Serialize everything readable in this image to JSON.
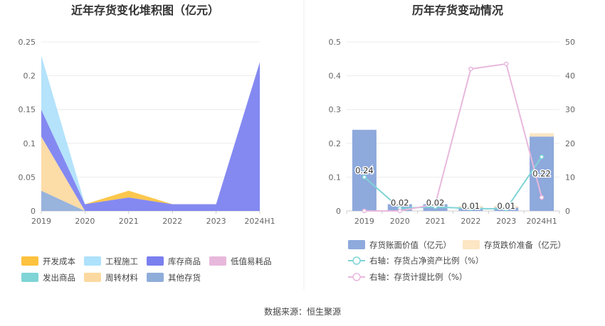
{
  "source": "数据来源：恒生聚源",
  "chart_data": [
    {
      "type": "area",
      "stacked": true,
      "title": "近年存货变化堆积图（亿元）",
      "categories": [
        "2019",
        "2020",
        "2021",
        "2022",
        "2023",
        "2024H1"
      ],
      "ylim": [
        0,
        0.25
      ],
      "yticks": [
        "0",
        "0.05",
        "0.1",
        "0.15",
        "0.2",
        "0.25"
      ],
      "grid": true,
      "legend_position": "bottom",
      "series": [
        {
          "name": "其他存货",
          "color": "#8fadd9",
          "values": [
            0.03,
            0,
            0,
            0,
            0,
            0
          ]
        },
        {
          "name": "周转材料",
          "color": "#fcd9a0",
          "values": [
            0.08,
            0,
            0,
            0,
            0,
            0
          ]
        },
        {
          "name": "发出商品",
          "color": "#7fd4d6",
          "values": [
            0,
            0,
            0,
            0,
            0,
            0
          ]
        },
        {
          "name": "低值易耗品",
          "color": "#e8b8dc",
          "values": [
            0,
            0,
            0,
            0,
            0,
            0
          ]
        },
        {
          "name": "库存商品",
          "color": "#7a7ff0",
          "values": [
            0.04,
            0.01,
            0.02,
            0.01,
            0.01,
            0.22
          ]
        },
        {
          "name": "工程施工",
          "color": "#aee1fb",
          "values": [
            0.08,
            0,
            0,
            0,
            0,
            0
          ]
        },
        {
          "name": "开发成本",
          "color": "#fdc23e",
          "values": [
            0,
            0,
            0.01,
            0,
            0,
            0
          ]
        }
      ],
      "legend_order": [
        "开发成本",
        "工程施工",
        "库存商品",
        "低值易耗品",
        "发出商品",
        "周转材料",
        "其他存货"
      ]
    },
    {
      "type": "bar+line",
      "title": "历年存货变动情况",
      "categories": [
        "2019",
        "2020",
        "2021",
        "2022",
        "2023",
        "2024H1"
      ],
      "ylim_left": [
        0,
        0.5
      ],
      "yticks_left": [
        "0",
        "0.1",
        "0.2",
        "0.3",
        "0.4",
        "0.5"
      ],
      "ylim_right": [
        0,
        50
      ],
      "yticks_right": [
        "0",
        "10",
        "20",
        "30",
        "40",
        "50"
      ],
      "grid": true,
      "legend_position": "bottom",
      "bars": [
        {
          "name": "存货账面价值（亿元）",
          "color": "#8ea9dc",
          "values": [
            0.24,
            0.02,
            0.02,
            0.01,
            0.01,
            0.22
          ],
          "labels": [
            "0.24",
            "0.02",
            "0.02",
            "0.01",
            "0.01",
            "0.22"
          ]
        },
        {
          "name": "存货跌价准备（亿元）",
          "color": "#fde6c4",
          "values": [
            0,
            0,
            0,
            0.005,
            0.005,
            0.01
          ]
        }
      ],
      "lines": [
        {
          "name": "右轴：存货占净资产比例（%）",
          "color": "#7fd4d6",
          "values": [
            10,
            0.8,
            1.2,
            0.7,
            0.6,
            16
          ]
        },
        {
          "name": "右轴：存货计提比例（%）",
          "color": "#e8b8dc",
          "values": [
            0,
            0,
            2,
            42,
            43.5,
            4
          ]
        }
      ]
    }
  ]
}
